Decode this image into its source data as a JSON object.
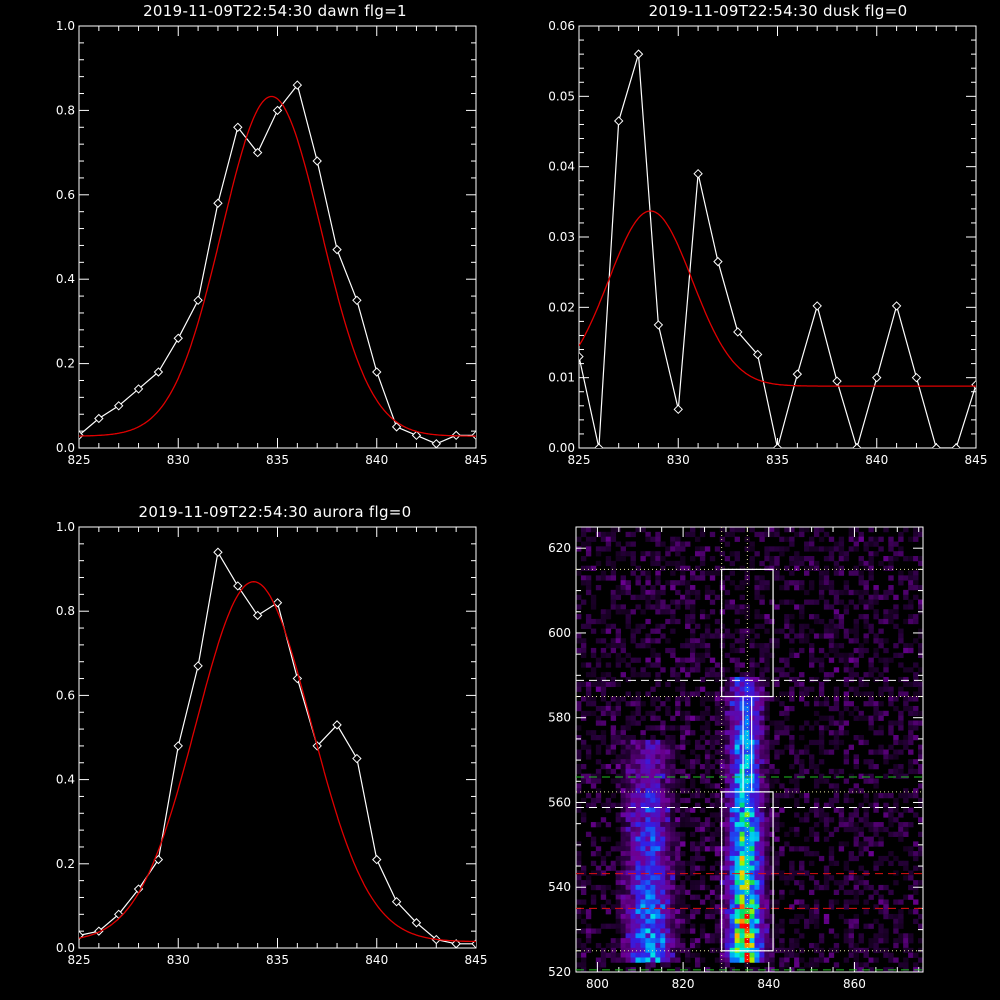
{
  "colors": {
    "background": "#000000",
    "axes": "#ffffff",
    "data_line": "#ffffff",
    "fit_line": "#e00000",
    "box": "#ffffff",
    "dashed_white": "#ffffff",
    "dashed_green": "#20c020",
    "dashed_red": "#e01010",
    "dotted": "#e8e8a0"
  },
  "chart_data": [
    {
      "id": "dawn",
      "type": "line",
      "title": "2019-11-09T22:54:30 dawn flg=1",
      "xlim": [
        825,
        845
      ],
      "ylim": [
        0,
        1.0
      ],
      "xticks": [
        825,
        830,
        835,
        840,
        845
      ],
      "yticks": [
        0.0,
        0.2,
        0.4,
        0.6,
        0.8,
        1.0
      ],
      "ytick_labels": [
        "0.0",
        "0.2",
        "0.4",
        "0.6",
        "0.8",
        "1.0"
      ],
      "series": [
        {
          "kind": "data",
          "marker": "diamond",
          "x": [
            825,
            826,
            827,
            828,
            829,
            830,
            831,
            832,
            833,
            834,
            835,
            836,
            837,
            838,
            839,
            840,
            841,
            842,
            843,
            844,
            845
          ],
          "y": [
            0.03,
            0.07,
            0.1,
            0.14,
            0.18,
            0.26,
            0.35,
            0.58,
            0.76,
            0.7,
            0.8,
            0.86,
            0.68,
            0.47,
            0.35,
            0.18,
            0.05,
            0.03,
            0.01,
            0.03,
            0.03
          ]
        },
        {
          "kind": "fit",
          "model": "gaussian",
          "amplitude": 0.805,
          "center": 834.7,
          "sigma": 2.5,
          "offset": 0.028
        }
      ]
    },
    {
      "id": "dusk",
      "type": "line",
      "title": "2019-11-09T22:54:30 dusk flg=0",
      "xlim": [
        825,
        845
      ],
      "ylim": [
        0,
        0.06
      ],
      "xticks": [
        825,
        830,
        835,
        840,
        845
      ],
      "yticks": [
        0.0,
        0.01,
        0.02,
        0.03,
        0.04,
        0.05,
        0.06
      ],
      "ytick_labels": [
        "0.00",
        "0.01",
        "0.02",
        "0.03",
        "0.04",
        "0.05",
        "0.06"
      ],
      "series": [
        {
          "kind": "data",
          "marker": "diamond",
          "x": [
            825,
            826,
            827,
            828,
            829,
            830,
            831,
            832,
            833,
            834,
            835,
            836,
            837,
            838,
            839,
            840,
            841,
            842,
            843,
            844,
            845
          ],
          "y": [
            0.013,
            0.0,
            0.0465,
            0.056,
            0.0175,
            0.0055,
            0.039,
            0.0265,
            0.0165,
            0.0133,
            0.0,
            0.0105,
            0.0202,
            0.0095,
            0.0,
            0.01,
            0.0202,
            0.01,
            0.0,
            0.0,
            0.009
          ]
        },
        {
          "kind": "fit",
          "model": "gaussian",
          "amplitude": 0.0249,
          "center": 828.6,
          "sigma": 2.1,
          "offset": 0.0088
        }
      ]
    },
    {
      "id": "aurora",
      "type": "line",
      "title": "2019-11-09T22:54:30 aurora flg=0",
      "xlim": [
        825,
        845
      ],
      "ylim": [
        0,
        1.0
      ],
      "xticks": [
        825,
        830,
        835,
        840,
        845
      ],
      "yticks": [
        0.0,
        0.2,
        0.4,
        0.6,
        0.8,
        1.0
      ],
      "ytick_labels": [
        "0.0",
        "0.2",
        "0.4",
        "0.6",
        "0.8",
        "1.0"
      ],
      "series": [
        {
          "kind": "data",
          "marker": "diamond",
          "x": [
            825,
            826,
            827,
            828,
            829,
            830,
            831,
            832,
            833,
            834,
            835,
            836,
            837,
            838,
            839,
            840,
            841,
            842,
            843,
            844,
            845
          ],
          "y": [
            0.03,
            0.04,
            0.08,
            0.14,
            0.21,
            0.48,
            0.67,
            0.94,
            0.86,
            0.79,
            0.82,
            0.64,
            0.48,
            0.53,
            0.45,
            0.21,
            0.11,
            0.06,
            0.02,
            0.01,
            0.01
          ]
        },
        {
          "kind": "fit",
          "model": "gaussian",
          "amplitude": 0.855,
          "center": 833.8,
          "sigma": 2.9,
          "offset": 0.015
        }
      ]
    },
    {
      "id": "image",
      "type": "heatmap",
      "title": "",
      "xlim": [
        795,
        876
      ],
      "ylim": [
        520,
        625
      ],
      "xticks": [
        800,
        820,
        840,
        860
      ],
      "yticks": [
        520,
        540,
        560,
        580,
        600,
        620
      ],
      "colormap": "rainbow-on-black",
      "emission_bands": [
        {
          "x_center": 834.5,
          "x_width": 2.5,
          "y_bottom": 522,
          "y_top": 590,
          "peak": 1.0
        },
        {
          "x_center": 812,
          "x_width": 3.5,
          "y_bottom": 522,
          "y_top": 575,
          "peak": 0.55
        }
      ],
      "boxes": [
        {
          "x0": 829,
          "x1": 841,
          "y0": 525,
          "y1": 562.5
        },
        {
          "x0": 829,
          "x1": 841,
          "y0": 585,
          "y1": 615
        },
        {
          "x0": 834,
          "x1": 836,
          "y0": 562.5,
          "y1": 585
        }
      ],
      "hlines": [
        {
          "y": 588.8,
          "style": "dashed",
          "color": "white"
        },
        {
          "y": 558.8,
          "style": "dashed",
          "color": "white"
        },
        {
          "y": 566,
          "style": "dashed",
          "color": "green"
        },
        {
          "y": 520.5,
          "style": "dashed",
          "color": "green"
        },
        {
          "y": 543.2,
          "style": "dashed",
          "color": "red"
        },
        {
          "y": 535,
          "style": "dashed",
          "color": "red"
        },
        {
          "y": 615,
          "style": "dotted",
          "color": "yellow"
        },
        {
          "y": 585,
          "style": "dotted",
          "color": "yellow"
        },
        {
          "y": 562.5,
          "style": "dotted",
          "color": "yellow"
        },
        {
          "y": 525,
          "style": "dotted",
          "color": "yellow"
        }
      ],
      "vlines": [
        {
          "x": 829,
          "style": "dotted",
          "color": "yellow"
        },
        {
          "x": 835,
          "style": "dotted",
          "color": "yellow"
        }
      ]
    }
  ]
}
